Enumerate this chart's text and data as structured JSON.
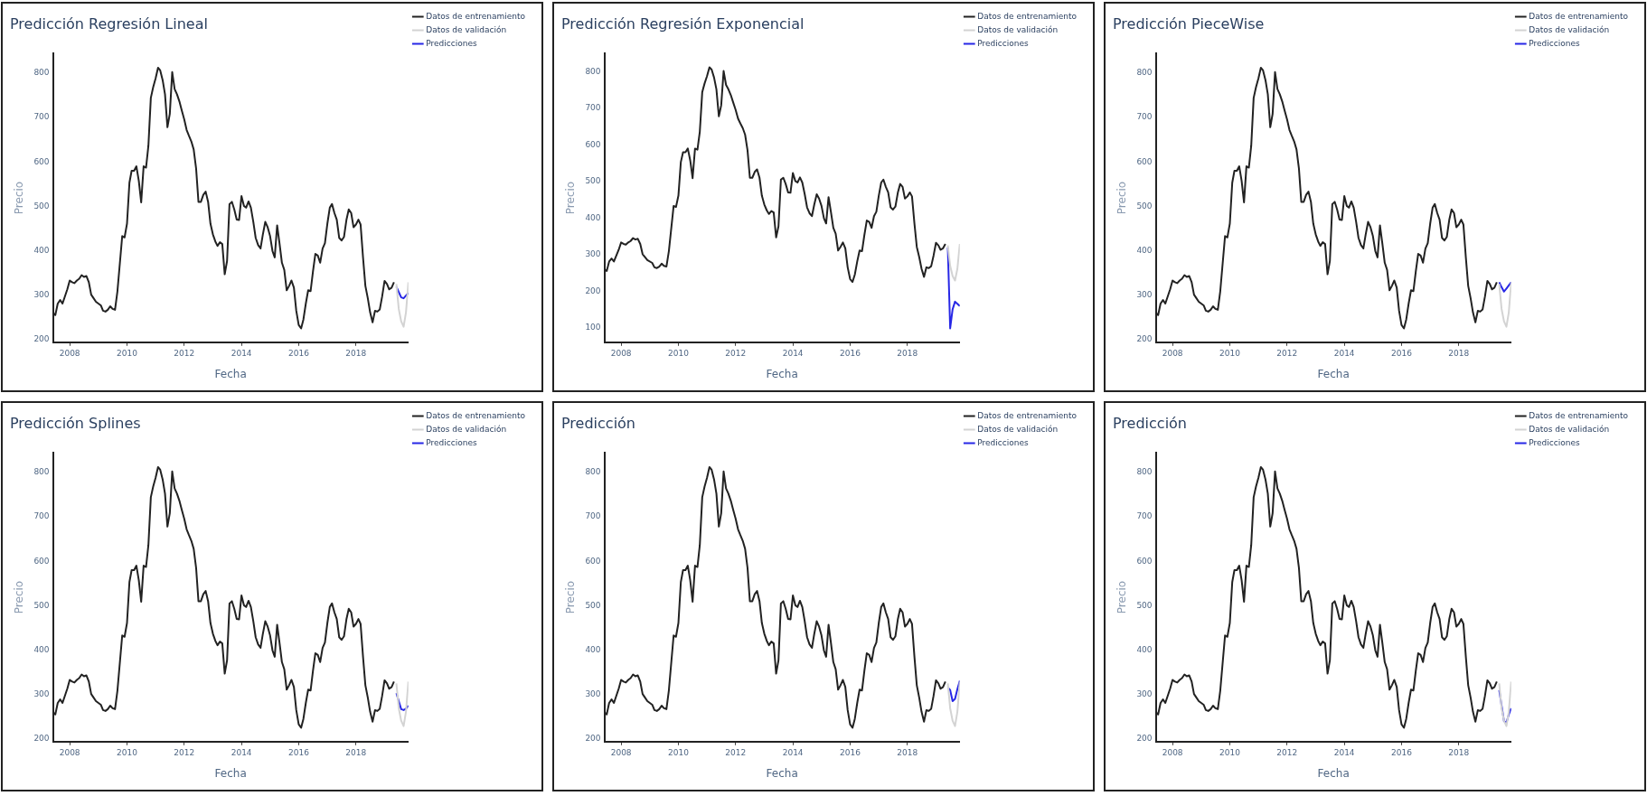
{
  "chart_data": [
    {
      "type": "line",
      "title": "Predicción Regresión Lineal",
      "xlabel": "Fecha",
      "ylabel": "Precio",
      "legend": "top right",
      "grid": false,
      "xlim": [
        "2007-06",
        "2019-11"
      ],
      "xticks": [
        "2008",
        "2010",
        "2012",
        "2014",
        "2016",
        "2018"
      ],
      "ylim": [
        194,
        844
      ],
      "yticks": [
        200,
        300,
        400,
        500,
        600,
        700,
        800
      ],
      "x": [
        "2007-06",
        "2007-07",
        "2007-08",
        "2007-09",
        "2007-10",
        "2007-12",
        "2008-01",
        "2008-02",
        "2008-03",
        "2008-04",
        "2008-05",
        "2008-06",
        "2008-07",
        "2008-08",
        "2008-09",
        "2008-10",
        "2008-11",
        "2008-12",
        "2009-02",
        "2009-03",
        "2009-04",
        "2009-05",
        "2009-06",
        "2009-07",
        "2009-08",
        "2009-09",
        "2009-11",
        "2009-12",
        "2010-01",
        "2010-02",
        "2010-03",
        "2010-04",
        "2010-05",
        "2010-06",
        "2010-07",
        "2010-08",
        "2010-09",
        "2010-10",
        "2010-11",
        "2010-12",
        "2011-01",
        "2011-02",
        "2011-03",
        "2011-04",
        "2011-05",
        "2011-06",
        "2011-07",
        "2011-08",
        "2011-09",
        "2011-10",
        "2011-11",
        "2011-12",
        "2012-01",
        "2012-02",
        "2012-03",
        "2012-04",
        "2012-05",
        "2012-06",
        "2012-07",
        "2012-08",
        "2012-09",
        "2012-10",
        "2012-11",
        "2012-12",
        "2013-01",
        "2013-02",
        "2013-03",
        "2013-04",
        "2013-05",
        "2013-06",
        "2013-07",
        "2013-08",
        "2013-09",
        "2013-10",
        "2013-11",
        "2013-12",
        "2014-01",
        "2014-02",
        "2014-03",
        "2014-04",
        "2014-05",
        "2014-06",
        "2014-07",
        "2014-08",
        "2014-09",
        "2014-10",
        "2014-11",
        "2014-12",
        "2015-01",
        "2015-02",
        "2015-03",
        "2015-04",
        "2015-05",
        "2015-06",
        "2015-07",
        "2015-08",
        "2015-09",
        "2015-10",
        "2015-11",
        "2015-12",
        "2016-01",
        "2016-02",
        "2016-03",
        "2016-04",
        "2016-05",
        "2016-06",
        "2016-07",
        "2016-08",
        "2016-09",
        "2016-10",
        "2016-11",
        "2016-12",
        "2017-01",
        "2017-02",
        "2017-03",
        "2017-04",
        "2017-05",
        "2017-06",
        "2017-07",
        "2017-08",
        "2017-09",
        "2017-10",
        "2017-11",
        "2017-12",
        "2018-01",
        "2018-02",
        "2018-03",
        "2018-04",
        "2018-05",
        "2018-06",
        "2018-07",
        "2018-08",
        "2018-09",
        "2018-10",
        "2018-11",
        "2018-12",
        "2019-01",
        "2019-02",
        "2019-03",
        "2019-04",
        "2019-05"
      ],
      "series": [
        {
          "name": "Datos de entrenamiento",
          "color": "#222222",
          "values": [
            260,
            255,
            281,
            289,
            281,
            313,
            333,
            329,
            327,
            333,
            337,
            345,
            341,
            343,
            329,
            301,
            293,
            285,
            277,
            265,
            263,
            267,
            275,
            269,
            267,
            309,
            433,
            430,
            461,
            553,
            580,
            580,
            590,
            557,
            509,
            590,
            587,
            636,
            744,
            768,
            788,
            812,
            806,
            784,
            752,
            678,
            708,
            802,
            764,
            752,
            736,
            716,
            696,
            672,
            659,
            646,
            628,
            585,
            510,
            510,
            526,
            533,
            510,
            461,
            437,
            421,
            411,
            419,
            415,
            347,
            377,
            505,
            510,
            493,
            470,
            469,
            523,
            501,
            497,
            511,
            497,
            465,
            429,
            413,
            405,
            437,
            465,
            453,
            433,
            399,
            385,
            457,
            417,
            373,
            357,
            311,
            321,
            333,
            317,
            265,
            233,
            225,
            245,
            281,
            311,
            309,
            353,
            393,
            389,
            373,
            405,
            417,
            461,
            497,
            505,
            485,
            470,
            429,
            423,
            431,
            469,
            493,
            485,
            453,
            459,
            470,
            459,
            385,
            321,
            293,
            261,
            239,
            265,
            263,
            268,
            297,
            332,
            325,
            313,
            317,
            329
          ]
        },
        {
          "name": "Datos de validación",
          "color": "#d3d3d3",
          "x": [
            "2019-06",
            "2019-07",
            "2019-08",
            "2019-09",
            "2019-10",
            "2019-11"
          ],
          "values": [
            325,
            269,
            241,
            229,
            261,
            329
          ]
        },
        {
          "name": "Predicciones",
          "color": "#2727e6",
          "x": [
            "2019-06",
            "2019-07",
            "2019-08",
            "2019-09",
            "2019-10",
            "2019-11"
          ],
          "values": [
            319,
            307,
            295,
            293,
            299,
            305
          ]
        }
      ]
    },
    {
      "type": "line",
      "title": "Predicción Regresión Exponencial",
      "xlabel": "Fecha",
      "ylabel": "Precio",
      "legend": "top right",
      "grid": false,
      "xlim": [
        "2007-06",
        "2019-11"
      ],
      "xticks": [
        "2008",
        "2010",
        "2012",
        "2014",
        "2016",
        "2018"
      ],
      "ylim": [
        60,
        850
      ],
      "yticks": [
        100,
        200,
        300,
        400,
        500,
        600,
        700,
        800
      ],
      "x": [
        "2007-06",
        "2007-07",
        "2007-08",
        "2007-09",
        "2007-10",
        "2007-12",
        "2008-01",
        "2008-02",
        "2008-03",
        "2008-04",
        "2008-05",
        "2008-06",
        "2008-07",
        "2008-08",
        "2008-09",
        "2008-10",
        "2008-11",
        "2008-12",
        "2009-02",
        "2009-03",
        "2009-04",
        "2009-05",
        "2009-06",
        "2009-07",
        "2009-08",
        "2009-09",
        "2009-11",
        "2009-12",
        "2010-01",
        "2010-02",
        "2010-03",
        "2010-04",
        "2010-05",
        "2010-06",
        "2010-07",
        "2010-08",
        "2010-09",
        "2010-10",
        "2010-11",
        "2010-12",
        "2011-01",
        "2011-02",
        "2011-03",
        "2011-04",
        "2011-05",
        "2011-06",
        "2011-07",
        "2011-08",
        "2011-09",
        "2011-10",
        "2011-11",
        "2011-12",
        "2012-01",
        "2012-02",
        "2012-03",
        "2012-04",
        "2012-05",
        "2012-06",
        "2012-07",
        "2012-08",
        "2012-09",
        "2012-10",
        "2012-11",
        "2012-12",
        "2013-01",
        "2013-02",
        "2013-03",
        "2013-04",
        "2013-05",
        "2013-06",
        "2013-07",
        "2013-08",
        "2013-09",
        "2013-10",
        "2013-11",
        "2013-12",
        "2014-01",
        "2014-02",
        "2014-03",
        "2014-04",
        "2014-05",
        "2014-06",
        "2014-07",
        "2014-08",
        "2014-09",
        "2014-10",
        "2014-11",
        "2014-12",
        "2015-01",
        "2015-02",
        "2015-03",
        "2015-04",
        "2015-05",
        "2015-06",
        "2015-07",
        "2015-08",
        "2015-09",
        "2015-10",
        "2015-11",
        "2015-12",
        "2016-01",
        "2016-02",
        "2016-03",
        "2016-04",
        "2016-05",
        "2016-06",
        "2016-07",
        "2016-08",
        "2016-09",
        "2016-10",
        "2016-11",
        "2016-12",
        "2017-01",
        "2017-02",
        "2017-03",
        "2017-04",
        "2017-05",
        "2017-06",
        "2017-07",
        "2017-08",
        "2017-09",
        "2017-10",
        "2017-11",
        "2017-12",
        "2018-01",
        "2018-02",
        "2018-03",
        "2018-04",
        "2018-05",
        "2018-06",
        "2018-07",
        "2018-08",
        "2018-09",
        "2018-10",
        "2018-11",
        "2018-12",
        "2019-01",
        "2019-02",
        "2019-03",
        "2019-04",
        "2019-05"
      ],
      "series": [
        {
          "name": "Datos de entrenamiento",
          "color": "#222222",
          "values": [
            260,
            255,
            281,
            289,
            281,
            313,
            333,
            329,
            327,
            333,
            337,
            345,
            341,
            343,
            329,
            301,
            293,
            285,
            277,
            265,
            263,
            267,
            275,
            269,
            267,
            309,
            433,
            430,
            461,
            553,
            580,
            580,
            590,
            557,
            509,
            590,
            587,
            636,
            744,
            768,
            788,
            812,
            806,
            784,
            752,
            678,
            708,
            802,
            764,
            752,
            736,
            716,
            696,
            672,
            659,
            646,
            628,
            585,
            510,
            510,
            526,
            533,
            510,
            461,
            437,
            421,
            411,
            419,
            415,
            347,
            377,
            505,
            510,
            493,
            470,
            469,
            523,
            501,
            497,
            511,
            497,
            465,
            429,
            413,
            405,
            437,
            465,
            453,
            433,
            399,
            385,
            457,
            417,
            373,
            357,
            311,
            321,
            333,
            317,
            265,
            233,
            225,
            245,
            281,
            311,
            309,
            353,
            393,
            389,
            373,
            405,
            417,
            461,
            497,
            505,
            485,
            470,
            429,
            423,
            431,
            469,
            493,
            485,
            453,
            459,
            470,
            459,
            385,
            321,
            293,
            261,
            239,
            265,
            263,
            268,
            297,
            332,
            325,
            313,
            317,
            329
          ]
        },
        {
          "name": "Datos de validación",
          "color": "#d3d3d3",
          "x": [
            "2019-06",
            "2019-07",
            "2019-08",
            "2019-09",
            "2019-10",
            "2019-11"
          ],
          "values": [
            325,
            269,
            241,
            229,
            261,
            329
          ]
        },
        {
          "name": "Predicciones",
          "color": "#2727e6",
          "x": [
            "2019-06",
            "2019-07",
            "2019-08",
            "2019-09",
            "2019-10",
            "2019-11"
          ],
          "values": [
            319,
            98,
            150,
            171,
            165,
            159
          ]
        }
      ]
    },
    {
      "type": "line",
      "title": "Predicción PieceWise",
      "xlabel": "Fecha",
      "ylabel": "Precio",
      "legend": "top right",
      "grid": false,
      "xlim": [
        "2007-06",
        "2019-11"
      ],
      "xticks": [
        "2008",
        "2010",
        "2012",
        "2014",
        "2016",
        "2018"
      ],
      "ylim": [
        194,
        844
      ],
      "yticks": [
        200,
        300,
        400,
        500,
        600,
        700,
        800
      ],
      "x": [
        "2007-06",
        "2007-07",
        "2007-08",
        "2007-09",
        "2007-10",
        "2007-12",
        "2008-01",
        "2008-02",
        "2008-03",
        "2008-04",
        "2008-05",
        "2008-06",
        "2008-07",
        "2008-08",
        "2008-09",
        "2008-10",
        "2008-11",
        "2008-12",
        "2009-02",
        "2009-03",
        "2009-04",
        "2009-05",
        "2009-06",
        "2009-07",
        "2009-08",
        "2009-09",
        "2009-11",
        "2009-12",
        "2010-01",
        "2010-02",
        "2010-03",
        "2010-04",
        "2010-05",
        "2010-06",
        "2010-07",
        "2010-08",
        "2010-09",
        "2010-10",
        "2010-11",
        "2010-12",
        "2011-01",
        "2011-02",
        "2011-03",
        "2011-04",
        "2011-05",
        "2011-06",
        "2011-07",
        "2011-08",
        "2011-09",
        "2011-10",
        "2011-11",
        "2011-12",
        "2012-01",
        "2012-02",
        "2012-03",
        "2012-04",
        "2012-05",
        "2012-06",
        "2012-07",
        "2012-08",
        "2012-09",
        "2012-10",
        "2012-11",
        "2012-12",
        "2013-01",
        "2013-02",
        "2013-03",
        "2013-04",
        "2013-05",
        "2013-06",
        "2013-07",
        "2013-08",
        "2013-09",
        "2013-10",
        "2013-11",
        "2013-12",
        "2014-01",
        "2014-02",
        "2014-03",
        "2014-04",
        "2014-05",
        "2014-06",
        "2014-07",
        "2014-08",
        "2014-09",
        "2014-10",
        "2014-11",
        "2014-12",
        "2015-01",
        "2015-02",
        "2015-03",
        "2015-04",
        "2015-05",
        "2015-06",
        "2015-07",
        "2015-08",
        "2015-09",
        "2015-10",
        "2015-11",
        "2015-12",
        "2016-01",
        "2016-02",
        "2016-03",
        "2016-04",
        "2016-05",
        "2016-06",
        "2016-07",
        "2016-08",
        "2016-09",
        "2016-10",
        "2016-11",
        "2016-12",
        "2017-01",
        "2017-02",
        "2017-03",
        "2017-04",
        "2017-05",
        "2017-06",
        "2017-07",
        "2017-08",
        "2017-09",
        "2017-10",
        "2017-11",
        "2017-12",
        "2018-01",
        "2018-02",
        "2018-03",
        "2018-04",
        "2018-05",
        "2018-06",
        "2018-07",
        "2018-08",
        "2018-09",
        "2018-10",
        "2018-11",
        "2018-12",
        "2019-01",
        "2019-02",
        "2019-03",
        "2019-04",
        "2019-05"
      ],
      "series": [
        {
          "name": "Datos de entrenamiento",
          "color": "#222222",
          "values": [
            260,
            255,
            281,
            289,
            281,
            313,
            333,
            329,
            327,
            333,
            337,
            345,
            341,
            343,
            329,
            301,
            293,
            285,
            277,
            265,
            263,
            267,
            275,
            269,
            267,
            309,
            433,
            430,
            461,
            553,
            580,
            580,
            590,
            557,
            509,
            590,
            587,
            636,
            744,
            768,
            788,
            812,
            806,
            784,
            752,
            678,
            708,
            802,
            764,
            752,
            736,
            716,
            696,
            672,
            659,
            646,
            628,
            585,
            510,
            510,
            526,
            533,
            510,
            461,
            437,
            421,
            411,
            419,
            415,
            347,
            377,
            505,
            510,
            493,
            470,
            469,
            523,
            501,
            497,
            511,
            497,
            465,
            429,
            413,
            405,
            437,
            465,
            453,
            433,
            399,
            385,
            457,
            417,
            373,
            357,
            311,
            321,
            333,
            317,
            265,
            233,
            225,
            245,
            281,
            311,
            309,
            353,
            393,
            389,
            373,
            405,
            417,
            461,
            497,
            505,
            485,
            470,
            429,
            423,
            431,
            469,
            493,
            485,
            453,
            459,
            470,
            459,
            385,
            321,
            293,
            261,
            239,
            265,
            263,
            268,
            297,
            332,
            325,
            313,
            317,
            329
          ]
        },
        {
          "name": "Datos de validación",
          "color": "#d3d3d3",
          "x": [
            "2019-06",
            "2019-07",
            "2019-08",
            "2019-09",
            "2019-10",
            "2019-11"
          ],
          "values": [
            325,
            269,
            241,
            229,
            261,
            329
          ]
        },
        {
          "name": "Predicciones",
          "color": "#2727e6",
          "x": [
            "2019-06",
            "2019-07",
            "2019-08",
            "2019-09",
            "2019-10",
            "2019-11"
          ],
          "values": [
            329,
            318,
            308,
            315,
            322,
            329
          ]
        }
      ]
    },
    {
      "type": "line",
      "title": "Predicción Splines",
      "xlabel": "Fecha",
      "ylabel": "Precio",
      "legend": "top right",
      "grid": false,
      "xlim": [
        "2007-06",
        "2019-11"
      ],
      "xticks": [
        "2008",
        "2010",
        "2012",
        "2014",
        "2016",
        "2018"
      ],
      "ylim": [
        194,
        844
      ],
      "yticks": [
        200,
        300,
        400,
        500,
        600,
        700,
        800
      ],
      "x": [
        "2007-06",
        "2007-07",
        "2007-08",
        "2007-09",
        "2007-10",
        "2007-12",
        "2008-01",
        "2008-02",
        "2008-03",
        "2008-04",
        "2008-05",
        "2008-06",
        "2008-07",
        "2008-08",
        "2008-09",
        "2008-10",
        "2008-11",
        "2008-12",
        "2009-02",
        "2009-03",
        "2009-04",
        "2009-05",
        "2009-06",
        "2009-07",
        "2009-08",
        "2009-09",
        "2009-11",
        "2009-12",
        "2010-01",
        "2010-02",
        "2010-03",
        "2010-04",
        "2010-05",
        "2010-06",
        "2010-07",
        "2010-08",
        "2010-09",
        "2010-10",
        "2010-11",
        "2010-12",
        "2011-01",
        "2011-02",
        "2011-03",
        "2011-04",
        "2011-05",
        "2011-06",
        "2011-07",
        "2011-08",
        "2011-09",
        "2011-10",
        "2011-11",
        "2011-12",
        "2012-01",
        "2012-02",
        "2012-03",
        "2012-04",
        "2012-05",
        "2012-06",
        "2012-07",
        "2012-08",
        "2012-09",
        "2012-10",
        "2012-11",
        "2012-12",
        "2013-01",
        "2013-02",
        "2013-03",
        "2013-04",
        "2013-05",
        "2013-06",
        "2013-07",
        "2013-08",
        "2013-09",
        "2013-10",
        "2013-11",
        "2013-12",
        "2014-01",
        "2014-02",
        "2014-03",
        "2014-04",
        "2014-05",
        "2014-06",
        "2014-07",
        "2014-08",
        "2014-09",
        "2014-10",
        "2014-11",
        "2014-12",
        "2015-01",
        "2015-02",
        "2015-03",
        "2015-04",
        "2015-05",
        "2015-06",
        "2015-07",
        "2015-08",
        "2015-09",
        "2015-10",
        "2015-11",
        "2015-12",
        "2016-01",
        "2016-02",
        "2016-03",
        "2016-04",
        "2016-05",
        "2016-06",
        "2016-07",
        "2016-08",
        "2016-09",
        "2016-10",
        "2016-11",
        "2016-12",
        "2017-01",
        "2017-02",
        "2017-03",
        "2017-04",
        "2017-05",
        "2017-06",
        "2017-07",
        "2017-08",
        "2017-09",
        "2017-10",
        "2017-11",
        "2017-12",
        "2018-01",
        "2018-02",
        "2018-03",
        "2018-04",
        "2018-05",
        "2018-06",
        "2018-07",
        "2018-08",
        "2018-09",
        "2018-10",
        "2018-11",
        "2018-12",
        "2019-01",
        "2019-02",
        "2019-03",
        "2019-04",
        "2019-05"
      ],
      "series": [
        {
          "name": "Datos de entrenamiento",
          "color": "#222222",
          "values": [
            260,
            255,
            281,
            289,
            281,
            313,
            333,
            329,
            327,
            333,
            337,
            345,
            341,
            343,
            329,
            301,
            293,
            285,
            277,
            265,
            263,
            267,
            275,
            269,
            267,
            309,
            433,
            430,
            461,
            553,
            580,
            580,
            590,
            557,
            509,
            590,
            587,
            636,
            744,
            768,
            788,
            812,
            806,
            784,
            752,
            678,
            708,
            802,
            764,
            752,
            736,
            716,
            696,
            672,
            659,
            646,
            628,
            585,
            510,
            510,
            526,
            533,
            510,
            461,
            437,
            421,
            411,
            419,
            415,
            347,
            377,
            505,
            510,
            493,
            470,
            469,
            523,
            501,
            497,
            511,
            497,
            465,
            429,
            413,
            405,
            437,
            465,
            453,
            433,
            399,
            385,
            457,
            417,
            373,
            357,
            311,
            321,
            333,
            317,
            265,
            233,
            225,
            245,
            281,
            311,
            309,
            353,
            393,
            389,
            373,
            405,
            417,
            461,
            497,
            505,
            485,
            470,
            429,
            423,
            431,
            469,
            493,
            485,
            453,
            459,
            470,
            459,
            385,
            321,
            293,
            261,
            239,
            265,
            263,
            268,
            297,
            332,
            325,
            313,
            317,
            329
          ]
        },
        {
          "name": "Datos de validación",
          "color": "#d3d3d3",
          "x": [
            "2019-06",
            "2019-07",
            "2019-08",
            "2019-09",
            "2019-10",
            "2019-11"
          ],
          "values": [
            325,
            269,
            241,
            229,
            261,
            329
          ]
        },
        {
          "name": "Predicciones",
          "color": "#2727e6",
          "x": [
            "2019-06",
            "2019-07",
            "2019-08",
            "2019-09",
            "2019-10",
            "2019-11"
          ],
          "values": [
            303,
            285,
            267,
            265,
            268,
            275
          ]
        }
      ]
    },
    {
      "type": "line",
      "title": "Predicción",
      "xlabel": "Fecha",
      "ylabel": "Precio",
      "legend": "top right",
      "grid": false,
      "xlim": [
        "2007-06",
        "2019-11"
      ],
      "xticks": [
        "2008",
        "2010",
        "2012",
        "2014",
        "2016",
        "2018"
      ],
      "ylim": [
        194,
        844
      ],
      "yticks": [
        200,
        300,
        400,
        500,
        600,
        700,
        800
      ],
      "x": [
        "2007-06",
        "2007-07",
        "2007-08",
        "2007-09",
        "2007-10",
        "2007-12",
        "2008-01",
        "2008-02",
        "2008-03",
        "2008-04",
        "2008-05",
        "2008-06",
        "2008-07",
        "2008-08",
        "2008-09",
        "2008-10",
        "2008-11",
        "2008-12",
        "2009-02",
        "2009-03",
        "2009-04",
        "2009-05",
        "2009-06",
        "2009-07",
        "2009-08",
        "2009-09",
        "2009-11",
        "2009-12",
        "2010-01",
        "2010-02",
        "2010-03",
        "2010-04",
        "2010-05",
        "2010-06",
        "2010-07",
        "2010-08",
        "2010-09",
        "2010-10",
        "2010-11",
        "2010-12",
        "2011-01",
        "2011-02",
        "2011-03",
        "2011-04",
        "2011-05",
        "2011-06",
        "2011-07",
        "2011-08",
        "2011-09",
        "2011-10",
        "2011-11",
        "2011-12",
        "2012-01",
        "2012-02",
        "2012-03",
        "2012-04",
        "2012-05",
        "2012-06",
        "2012-07",
        "2012-08",
        "2012-09",
        "2012-10",
        "2012-11",
        "2012-12",
        "2013-01",
        "2013-02",
        "2013-03",
        "2013-04",
        "2013-05",
        "2013-06",
        "2013-07",
        "2013-08",
        "2013-09",
        "2013-10",
        "2013-11",
        "2013-12",
        "2014-01",
        "2014-02",
        "2014-03",
        "2014-04",
        "2014-05",
        "2014-06",
        "2014-07",
        "2014-08",
        "2014-09",
        "2014-10",
        "2014-11",
        "2014-12",
        "2015-01",
        "2015-02",
        "2015-03",
        "2015-04",
        "2015-05",
        "2015-06",
        "2015-07",
        "2015-08",
        "2015-09",
        "2015-10",
        "2015-11",
        "2015-12",
        "2016-01",
        "2016-02",
        "2016-03",
        "2016-04",
        "2016-05",
        "2016-06",
        "2016-07",
        "2016-08",
        "2016-09",
        "2016-10",
        "2016-11",
        "2016-12",
        "2017-01",
        "2017-02",
        "2017-03",
        "2017-04",
        "2017-05",
        "2017-06",
        "2017-07",
        "2017-08",
        "2017-09",
        "2017-10",
        "2017-11",
        "2017-12",
        "2018-01",
        "2018-02",
        "2018-03",
        "2018-04",
        "2018-05",
        "2018-06",
        "2018-07",
        "2018-08",
        "2018-09",
        "2018-10",
        "2018-11",
        "2018-12",
        "2019-01",
        "2019-02",
        "2019-03",
        "2019-04",
        "2019-05"
      ],
      "series": [
        {
          "name": "Datos de entrenamiento",
          "color": "#222222",
          "values": [
            260,
            255,
            281,
            289,
            281,
            313,
            333,
            329,
            327,
            333,
            337,
            345,
            341,
            343,
            329,
            301,
            293,
            285,
            277,
            265,
            263,
            267,
            275,
            269,
            267,
            309,
            433,
            430,
            461,
            553,
            580,
            580,
            590,
            557,
            509,
            590,
            587,
            636,
            744,
            768,
            788,
            812,
            806,
            784,
            752,
            678,
            708,
            802,
            764,
            752,
            736,
            716,
            696,
            672,
            659,
            646,
            628,
            585,
            510,
            510,
            526,
            533,
            510,
            461,
            437,
            421,
            411,
            419,
            415,
            347,
            377,
            505,
            510,
            493,
            470,
            469,
            523,
            501,
            497,
            511,
            497,
            465,
            429,
            413,
            405,
            437,
            465,
            453,
            433,
            399,
            385,
            457,
            417,
            373,
            357,
            311,
            321,
            333,
            317,
            265,
            233,
            225,
            245,
            281,
            311,
            309,
            353,
            393,
            389,
            373,
            405,
            417,
            461,
            497,
            505,
            485,
            470,
            429,
            423,
            431,
            469,
            493,
            485,
            453,
            459,
            470,
            459,
            385,
            321,
            293,
            261,
            239,
            265,
            263,
            268,
            297,
            332,
            325,
            313,
            317,
            329
          ]
        },
        {
          "name": "Datos de validación",
          "color": "#d3d3d3",
          "x": [
            "2019-06",
            "2019-07",
            "2019-08",
            "2019-09",
            "2019-10",
            "2019-11"
          ],
          "values": [
            325,
            269,
            241,
            229,
            261,
            329
          ]
        },
        {
          "name": "Predicciones",
          "color": "#2727e6",
          "x": [
            "2019-06",
            "2019-07",
            "2019-08",
            "2019-09",
            "2019-10",
            "2019-11"
          ],
          "values": [
            316,
            310,
            285,
            290,
            312,
            331
          ]
        }
      ]
    },
    {
      "type": "line",
      "title": "Predicción",
      "xlabel": "Fecha",
      "ylabel": "Precio",
      "legend": "top right",
      "grid": false,
      "xlim": [
        "2007-06",
        "2019-11"
      ],
      "xticks": [
        "2008",
        "2010",
        "2012",
        "2014",
        "2016",
        "2018"
      ],
      "ylim": [
        194,
        844
      ],
      "yticks": [
        200,
        300,
        400,
        500,
        600,
        700,
        800
      ],
      "x": [
        "2007-06",
        "2007-07",
        "2007-08",
        "2007-09",
        "2007-10",
        "2007-12",
        "2008-01",
        "2008-02",
        "2008-03",
        "2008-04",
        "2008-05",
        "2008-06",
        "2008-07",
        "2008-08",
        "2008-09",
        "2008-10",
        "2008-11",
        "2008-12",
        "2009-02",
        "2009-03",
        "2009-04",
        "2009-05",
        "2009-06",
        "2009-07",
        "2009-08",
        "2009-09",
        "2009-11",
        "2009-12",
        "2010-01",
        "2010-02",
        "2010-03",
        "2010-04",
        "2010-05",
        "2010-06",
        "2010-07",
        "2010-08",
        "2010-09",
        "2010-10",
        "2010-11",
        "2010-12",
        "2011-01",
        "2011-02",
        "2011-03",
        "2011-04",
        "2011-05",
        "2011-06",
        "2011-07",
        "2011-08",
        "2011-09",
        "2011-10",
        "2011-11",
        "2011-12",
        "2012-01",
        "2012-02",
        "2012-03",
        "2012-04",
        "2012-05",
        "2012-06",
        "2012-07",
        "2012-08",
        "2012-09",
        "2012-10",
        "2012-11",
        "2012-12",
        "2013-01",
        "2013-02",
        "2013-03",
        "2013-04",
        "2013-05",
        "2013-06",
        "2013-07",
        "2013-08",
        "2013-09",
        "2013-10",
        "2013-11",
        "2013-12",
        "2014-01",
        "2014-02",
        "2014-03",
        "2014-04",
        "2014-05",
        "2014-06",
        "2014-07",
        "2014-08",
        "2014-09",
        "2014-10",
        "2014-11",
        "2014-12",
        "2015-01",
        "2015-02",
        "2015-03",
        "2015-04",
        "2015-05",
        "2015-06",
        "2015-07",
        "2015-08",
        "2015-09",
        "2015-10",
        "2015-11",
        "2015-12",
        "2016-01",
        "2016-02",
        "2016-03",
        "2016-04",
        "2016-05",
        "2016-06",
        "2016-07",
        "2016-08",
        "2016-09",
        "2016-10",
        "2016-11",
        "2016-12",
        "2017-01",
        "2017-02",
        "2017-03",
        "2017-04",
        "2017-05",
        "2017-06",
        "2017-07",
        "2017-08",
        "2017-09",
        "2017-10",
        "2017-11",
        "2017-12",
        "2018-01",
        "2018-02",
        "2018-03",
        "2018-04",
        "2018-05",
        "2018-06",
        "2018-07",
        "2018-08",
        "2018-09",
        "2018-10",
        "2018-11",
        "2018-12",
        "2019-01",
        "2019-02",
        "2019-03",
        "2019-04",
        "2019-05"
      ],
      "series": [
        {
          "name": "Datos de entrenamiento",
          "color": "#222222",
          "values": [
            260,
            255,
            281,
            289,
            281,
            313,
            333,
            329,
            327,
            333,
            337,
            345,
            341,
            343,
            329,
            301,
            293,
            285,
            277,
            265,
            263,
            267,
            275,
            269,
            267,
            309,
            433,
            430,
            461,
            553,
            580,
            580,
            590,
            557,
            509,
            590,
            587,
            636,
            744,
            768,
            788,
            812,
            806,
            784,
            752,
            678,
            708,
            802,
            764,
            752,
            736,
            716,
            696,
            672,
            659,
            646,
            628,
            585,
            510,
            510,
            526,
            533,
            510,
            461,
            437,
            421,
            411,
            419,
            415,
            347,
            377,
            505,
            510,
            493,
            470,
            469,
            523,
            501,
            497,
            511,
            497,
            465,
            429,
            413,
            405,
            437,
            465,
            453,
            433,
            399,
            385,
            457,
            417,
            373,
            357,
            311,
            321,
            333,
            317,
            265,
            233,
            225,
            245,
            281,
            311,
            309,
            353,
            393,
            389,
            373,
            405,
            417,
            461,
            497,
            505,
            485,
            470,
            429,
            423,
            431,
            469,
            493,
            485,
            453,
            459,
            470,
            459,
            385,
            321,
            293,
            261,
            239,
            265,
            263,
            268,
            297,
            332,
            325,
            313,
            317,
            329
          ]
        },
        {
          "name": "Datos de validación",
          "color": "#d3d3d3",
          "x": [
            "2019-06",
            "2019-07",
            "2019-08",
            "2019-09",
            "2019-10",
            "2019-11"
          ],
          "values": [
            325,
            269,
            241,
            229,
            261,
            329
          ]
        },
        {
          "name": "Predicciones",
          "color": "#2727e6",
          "x": [
            "2019-06",
            "2019-07",
            "2019-08",
            "2019-09",
            "2019-10",
            "2019-11"
          ],
          "values": [
            310,
            275,
            240,
            237,
            255,
            269
          ]
        }
      ]
    }
  ]
}
